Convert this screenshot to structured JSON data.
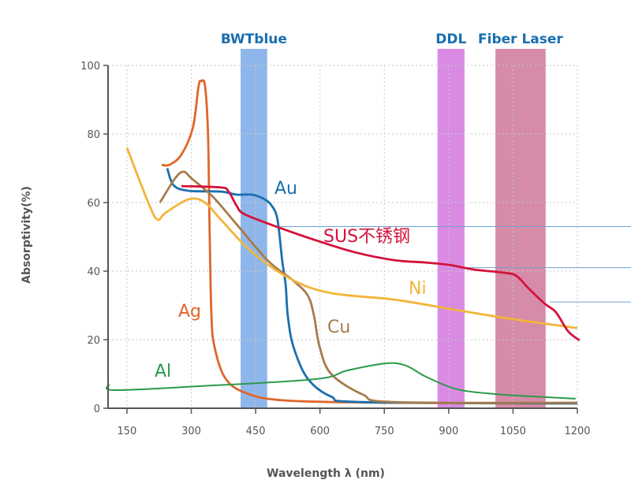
{
  "chart_data": {
    "type": "line",
    "title": "",
    "xlabel": "Wavelength λ (nm)",
    "ylabel": "Absorptivity(%)",
    "xlim": [
      106,
      1200
    ],
    "ylim": [
      0,
      100
    ],
    "xticks": [
      150,
      300,
      450,
      600,
      750,
      900,
      1050,
      1200
    ],
    "yticks": [
      0,
      20,
      40,
      60,
      80,
      100
    ],
    "grid": true,
    "bands": [
      {
        "name": "BWTblue",
        "range": [
          415,
          477
        ],
        "color": "#8fb6ea"
      },
      {
        "name": "DDL",
        "range": [
          874,
          937
        ],
        "color": "#d98be3"
      },
      {
        "name": "Fiber Laser",
        "range": [
          1009,
          1126
        ],
        "color": "#d68ca8"
      }
    ],
    "reference_lines": [
      53,
      41,
      31
    ],
    "series": [
      {
        "name": "Ag",
        "color": "#e0662a",
        "x": [
          231,
          249,
          277,
          304,
          317,
          324,
          332,
          339,
          343,
          347,
          354,
          378,
          424,
          516,
          773,
          1200
        ],
        "y": [
          71,
          71,
          74,
          82,
          94,
          95.4,
          94,
          80,
          50,
          27,
          18,
          9,
          4.6,
          2.3,
          1.6,
          1.4
        ]
      },
      {
        "name": "Au",
        "color": "#1a6faf",
        "x": [
          244,
          259,
          296,
          369,
          406,
          442,
          470,
          488,
          501,
          512,
          520,
          525,
          538,
          571,
          626,
          700,
          1200
        ],
        "y": [
          70,
          65,
          63.4,
          63.2,
          62.3,
          62.3,
          61,
          59,
          55,
          43,
          36,
          27,
          18,
          8.7,
          3.4,
          1.8,
          1.4
        ]
      },
      {
        "name": "Cu",
        "color": "#a57c4c",
        "x": [
          227,
          262,
          282,
          301,
          351,
          406,
          479,
          535,
          571,
          586,
          599,
          626,
          700,
          773,
          1200
        ],
        "y": [
          60,
          67,
          69,
          67,
          61.6,
          53.6,
          43,
          37.5,
          33,
          27,
          18,
          10,
          4,
          1.8,
          1.6
        ]
      },
      {
        "name": "Ni",
        "color": "#f2b53a",
        "x": [
          150,
          203,
          222,
          240,
          295,
          332,
          369,
          442,
          535,
          626,
          773,
          902,
          1049,
          1200
        ],
        "y": [
          76,
          59,
          55,
          57,
          61,
          60,
          55,
          45.5,
          37.5,
          33.6,
          31.7,
          29,
          26,
          23.4
        ]
      },
      {
        "name": "SUS不锈钢",
        "color": "#d4123a",
        "x": [
          277,
          369,
          387,
          406,
          424,
          498,
          590,
          681,
          773,
          847,
          902,
          957,
          1031,
          1058,
          1086,
          1123,
          1150,
          1178,
          1205
        ],
        "y": [
          64.8,
          64.4,
          63.2,
          59,
          56.6,
          53,
          49,
          45.5,
          43.2,
          42.5,
          41.8,
          40.5,
          39.5,
          38.6,
          35,
          30.6,
          28,
          22.5,
          19.8
        ]
      },
      {
        "name": "Al",
        "color": "#2a9a4a",
        "x": [
          108,
          121,
          314,
          590,
          663,
          755,
          801,
          847,
          921,
          1012,
          1104,
          1196
        ],
        "y": [
          6.9,
          5.3,
          6.4,
          8.5,
          11,
          13.1,
          12.4,
          9.2,
          5.5,
          4.1,
          3.4,
          2.8
        ]
      }
    ]
  }
}
